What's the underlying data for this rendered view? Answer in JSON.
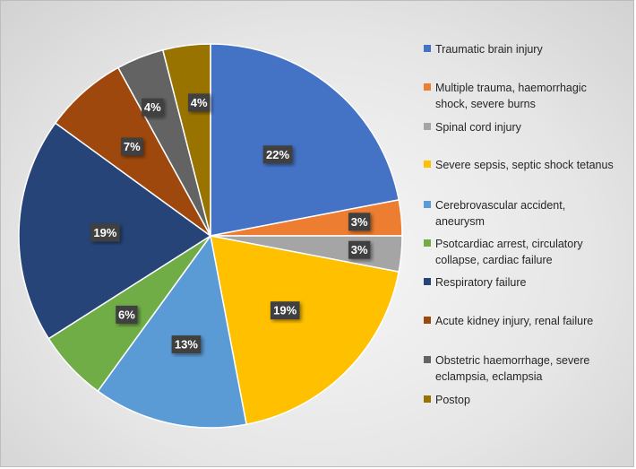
{
  "chart_data": {
    "type": "pie",
    "title": "",
    "legend_position": "right",
    "slices": [
      {
        "label": "Traumatic brain injury",
        "value": 22,
        "display": "22%",
        "color": "#4472C4"
      },
      {
        "label": "Multiple trauma, haemorrhagic shock, severe burns",
        "value": 3,
        "display": "3%",
        "color": "#ED7D31"
      },
      {
        "label": "Spinal cord injury",
        "value": 3,
        "display": "3%",
        "color": "#A5A5A5"
      },
      {
        "label": "Severe sepsis, septic shock tetanus",
        "value": 19,
        "display": "19%",
        "color": "#FFC000"
      },
      {
        "label": "Cerebrovascular accident, aneurysm",
        "value": 13,
        "display": "13%",
        "color": "#5B9BD5"
      },
      {
        "label": "Psotcardiac arrest, circulatory collapse, cardiac failure",
        "value": 6,
        "display": "6%",
        "color": "#70AD47"
      },
      {
        "label": "Respiratory failure",
        "value": 19,
        "display": "19%",
        "color": "#264478"
      },
      {
        "label": "Acute kidney injury, renal failure",
        "value": 7,
        "display": "7%",
        "color": "#9E480E"
      },
      {
        "label": "Obstetric haemorrhage, severe eclampsia, eclampsia",
        "value": 4,
        "display": "4%",
        "color": "#636363"
      },
      {
        "label": "Postop",
        "value": 4,
        "display": "4%",
        "color": "#997300"
      }
    ]
  }
}
